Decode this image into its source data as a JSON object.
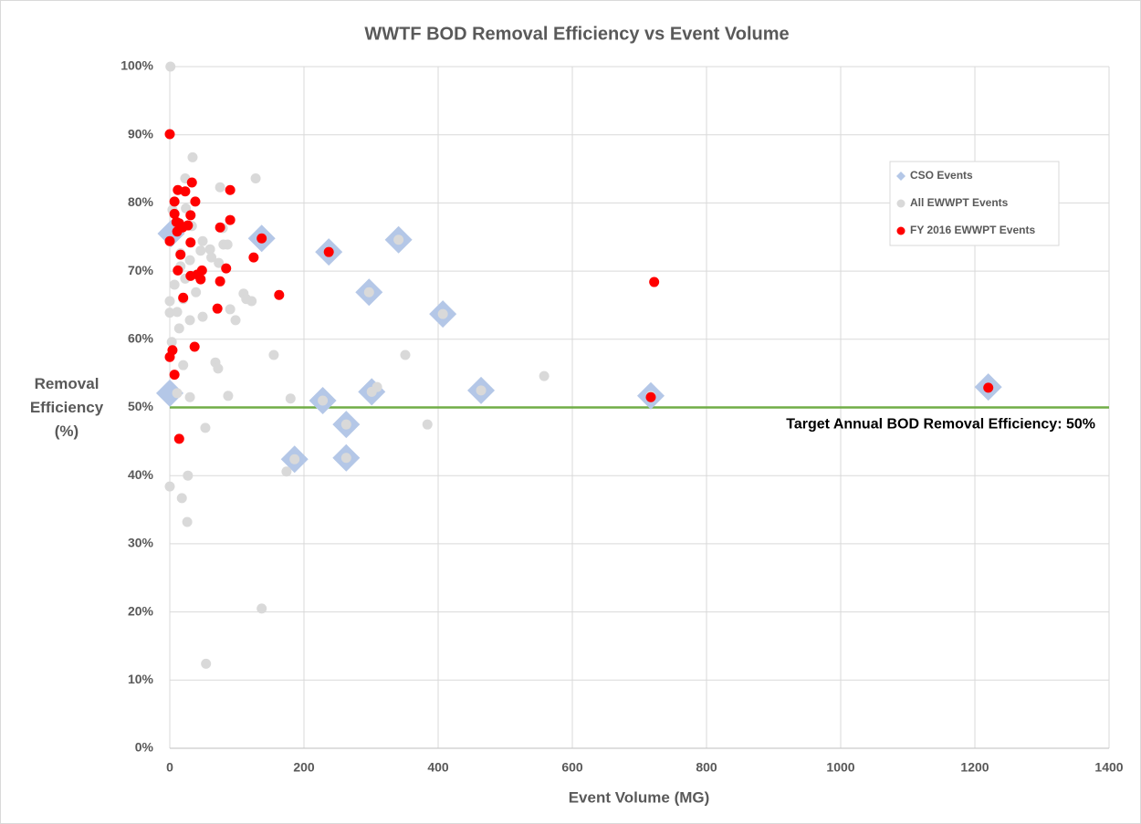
{
  "chart_data": {
    "type": "scatter",
    "title": "WWTF BOD Removal Efficiency vs Event Volume",
    "x_label": "Event Volume (MG)",
    "y_label": "Removal Efficiency (%)",
    "xlim": [
      0,
      1400
    ],
    "xticks": [
      0,
      200,
      400,
      600,
      800,
      1000,
      1200,
      1400
    ],
    "ylim": [
      0,
      100
    ],
    "yticks": [
      {
        "value": 0,
        "label": "0%"
      },
      {
        "value": 10,
        "label": "10%"
      },
      {
        "value": 20,
        "label": "20%"
      },
      {
        "value": 30,
        "label": "30%"
      },
      {
        "value": 40,
        "label": "40%"
      },
      {
        "value": 50,
        "label": "50%"
      },
      {
        "value": 60,
        "label": "60%"
      },
      {
        "value": 70,
        "label": "70%"
      },
      {
        "value": 80,
        "label": "80%"
      },
      {
        "value": 90,
        "label": "90%"
      },
      {
        "value": 100,
        "label": "100%"
      }
    ],
    "grid": true,
    "legend": "upper right",
    "target_line": {
      "value": 50,
      "label": "Target Annual BOD Removal Efficiency: 50%",
      "color": "#70ad47"
    },
    "series": [
      {
        "name": "CSO Events",
        "color": "#b4c7e7",
        "marker": "diamond",
        "x": [
          0,
          2,
          137,
          237,
          341,
          297,
          407,
          186,
          228,
          263,
          263,
          301,
          464,
          717,
          1220
        ],
        "values": [
          52.1,
          75.5,
          74.8,
          72.8,
          74.6,
          66.9,
          63.7,
          42.4,
          51.0,
          47.5,
          42.6,
          52.3,
          52.5,
          51.7,
          53.0
        ]
      },
      {
        "name": "All EWWPT Events",
        "color": "#d9d9d9",
        "marker": "circle",
        "x": [
          1,
          34,
          23,
          128,
          75,
          4,
          24,
          33,
          79,
          49,
          80,
          86,
          60,
          46,
          16,
          62,
          30,
          16,
          73,
          7,
          23,
          39,
          110,
          114,
          122,
          0,
          20,
          0,
          11,
          49,
          90,
          98,
          30,
          14,
          3,
          155,
          351,
          68,
          20,
          72,
          558,
          309,
          11,
          87,
          30,
          180,
          384,
          53,
          174,
          27,
          0,
          18,
          26,
          137,
          54,
          137,
          237,
          341,
          297,
          407,
          186,
          228,
          263,
          263,
          301,
          464,
          717
        ],
        "values": [
          100,
          86.7,
          83.6,
          83.6,
          82.3,
          79.0,
          79.2,
          76.6,
          76.3,
          74.4,
          73.9,
          73.9,
          73.2,
          73.0,
          72.6,
          72.0,
          71.6,
          70.7,
          71.2,
          68.0,
          68.9,
          66.9,
          66.7,
          65.9,
          65.6,
          65.6,
          65.9,
          63.9,
          64.0,
          63.3,
          64.4,
          62.8,
          62.8,
          61.6,
          59.6,
          57.7,
          57.7,
          56.6,
          56.2,
          55.7,
          54.6,
          53.0,
          52.1,
          51.7,
          51.5,
          51.3,
          47.5,
          47.0,
          40.6,
          40.0,
          38.4,
          36.7,
          33.2,
          20.5,
          12.4,
          74.8,
          72.8,
          74.6,
          66.9,
          63.7,
          42.4,
          51.0,
          47.5,
          42.6,
          52.3,
          52.5,
          51.7
        ]
      },
      {
        "name": "FY 2016 EWWPT Events",
        "color": "#ff0000",
        "marker": "circle",
        "x": [
          0,
          7,
          7,
          12,
          23,
          33,
          38,
          90,
          31,
          10,
          14,
          27,
          19,
          75,
          90,
          11,
          137,
          0,
          31,
          237,
          16,
          125,
          12,
          48,
          84,
          31,
          41,
          46,
          75,
          722,
          163,
          20,
          71,
          37,
          4,
          0,
          7,
          14,
          717,
          1220
        ],
        "values": [
          90.1,
          80.2,
          78.4,
          81.9,
          81.7,
          83.0,
          80.2,
          81.9,
          78.2,
          77.2,
          77.0,
          76.7,
          76.4,
          76.4,
          77.5,
          75.8,
          74.8,
          74.4,
          74.2,
          72.8,
          72.4,
          72.0,
          70.1,
          70.1,
          70.4,
          69.3,
          69.5,
          68.8,
          68.5,
          68.4,
          66.5,
          66.1,
          64.5,
          58.9,
          58.4,
          57.4,
          54.8,
          45.4,
          51.5,
          52.9
        ]
      }
    ]
  }
}
